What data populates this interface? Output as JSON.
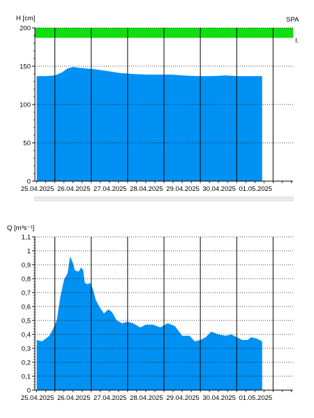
{
  "colors": {
    "fill": "#0091f2",
    "band": "#11dd11",
    "grid_dotted": "#000000",
    "day_line": "#000000",
    "scrollbar": "#d4d4d4"
  },
  "chart_data": [
    {
      "type": "area",
      "ylabel": "H [cm]",
      "corner_label": "SPA",
      "band_label": "I.",
      "band_range": [
        187,
        200
      ],
      "ylim": [
        0,
        200
      ],
      "yticks": [
        "0",
        "50",
        "100",
        "150",
        "200"
      ],
      "ytick_values": [
        0,
        50,
        100,
        150,
        200
      ],
      "xlim": [
        -0.05,
        7.05
      ],
      "xticks": [
        "25.04.2025",
        "26.04.2025",
        "27.04.2025",
        "28.04.2025",
        "29.04.2025",
        "30.04.2025",
        "01.05.2025"
      ],
      "grid": "dotted",
      "x": [
        0,
        0.25,
        0.5,
        0.7,
        0.85,
        1.0,
        1.15,
        1.35,
        1.6,
        1.9,
        2.3,
        2.6,
        3.0,
        3.4,
        3.7,
        4.0,
        4.4,
        4.8,
        5.2,
        5.5,
        5.9,
        6.2
      ],
      "values": [
        137,
        137,
        138,
        142,
        147,
        149,
        148,
        147,
        146,
        144,
        141,
        140,
        139,
        139,
        139,
        138,
        137,
        137,
        138,
        137,
        137,
        137
      ]
    },
    {
      "type": "area",
      "ylabel": "Q [m³s⁻¹]",
      "ylim": [
        0,
        1.1
      ],
      "yticks": [
        "0",
        "0,1",
        "0,2",
        "0,3",
        "0,4",
        "0,5",
        "0,6",
        "0,7",
        "0,8",
        "0,9",
        "1",
        "1,1"
      ],
      "ytick_values": [
        0,
        0.1,
        0.2,
        0.3,
        0.4,
        0.5,
        0.6,
        0.7,
        0.8,
        0.9,
        1.0,
        1.1
      ],
      "xlim": [
        -0.05,
        7.05
      ],
      "xticks": [
        "25.04.2025",
        "26.04.2025",
        "27.04.2025",
        "28.04.2025",
        "29.04.2025",
        "30.04.2025",
        "01.05.2025"
      ],
      "grid": "dotted",
      "x": [
        0,
        0.15,
        0.25,
        0.35,
        0.45,
        0.55,
        0.65,
        0.75,
        0.85,
        0.92,
        1.0,
        1.05,
        1.15,
        1.22,
        1.28,
        1.32,
        1.4,
        1.47,
        1.55,
        1.62,
        1.72,
        1.85,
        1.97,
        2.07,
        2.2,
        2.35,
        2.5,
        2.65,
        2.85,
        3.0,
        3.2,
        3.4,
        3.6,
        3.8,
        4.0,
        4.2,
        4.35,
        4.5,
        4.65,
        4.8,
        5.0,
        5.2,
        5.35,
        5.5,
        5.65,
        5.8,
        5.9,
        6.05,
        6.2
      ],
      "values": [
        0.36,
        0.35,
        0.37,
        0.39,
        0.44,
        0.5,
        0.67,
        0.79,
        0.84,
        0.96,
        0.91,
        0.86,
        0.85,
        0.88,
        0.86,
        0.77,
        0.76,
        0.77,
        0.72,
        0.65,
        0.6,
        0.55,
        0.58,
        0.56,
        0.5,
        0.48,
        0.49,
        0.48,
        0.45,
        0.47,
        0.47,
        0.45,
        0.48,
        0.46,
        0.39,
        0.39,
        0.35,
        0.36,
        0.38,
        0.42,
        0.4,
        0.39,
        0.4,
        0.38,
        0.36,
        0.36,
        0.38,
        0.37,
        0.35
      ]
    }
  ]
}
